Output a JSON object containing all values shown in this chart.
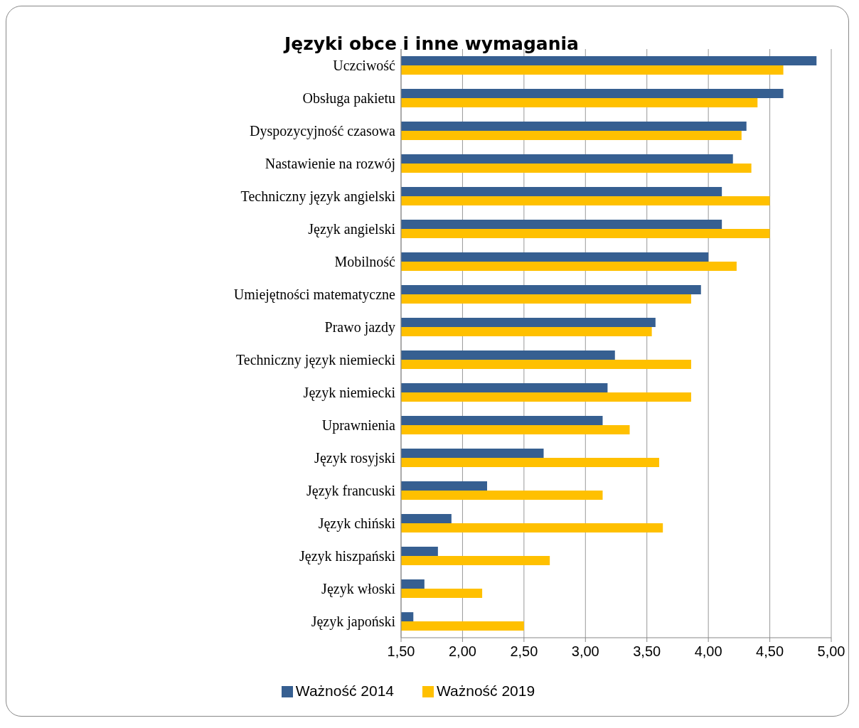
{
  "chart_data": {
    "type": "bar",
    "orientation": "horizontal",
    "title": "Języki obce i inne wymagania",
    "categories": [
      "Uczciwość",
      "Obsługa pakietu",
      "Dyspozycyjność czasowa",
      "Nastawienie na rozwój",
      "Techniczny język angielski",
      "Język angielski",
      "Mobilność",
      "Umiejętności matematyczne",
      "Prawo jazdy",
      "Techniczny język niemiecki",
      "Język niemiecki",
      "Uprawnienia",
      "Język rosyjski",
      "Język francuski",
      "Język chiński",
      "Język hiszpański",
      "Język włoski",
      "Język japoński"
    ],
    "series": [
      {
        "name": "Ważność 2014",
        "color": "#365f91",
        "values": [
          4.88,
          4.61,
          4.31,
          4.2,
          4.11,
          4.11,
          4.0,
          3.94,
          3.57,
          3.24,
          3.18,
          3.14,
          2.66,
          2.2,
          1.91,
          1.8,
          1.69,
          1.6
        ]
      },
      {
        "name": "Ważność 2019",
        "color": "#ffc000",
        "values": [
          4.61,
          4.4,
          4.27,
          4.35,
          4.5,
          4.5,
          4.23,
          3.86,
          3.54,
          3.86,
          3.86,
          3.36,
          3.6,
          3.14,
          3.63,
          2.71,
          2.16,
          2.5
        ]
      }
    ],
    "xlim": [
      1.5,
      5
    ],
    "xticks": [
      {
        "value": 1.5,
        "label": "1,50"
      },
      {
        "value": 2,
        "label": "2,00"
      },
      {
        "value": 2.5,
        "label": "2,50"
      },
      {
        "value": 3,
        "label": "3,00"
      },
      {
        "value": 3.5,
        "label": "3,50"
      },
      {
        "value": 4,
        "label": "4,00"
      },
      {
        "value": 4.5,
        "label": "4,50"
      },
      {
        "value": 5,
        "label": "5,00"
      }
    ],
    "grid": "x",
    "legend": "bottom"
  }
}
